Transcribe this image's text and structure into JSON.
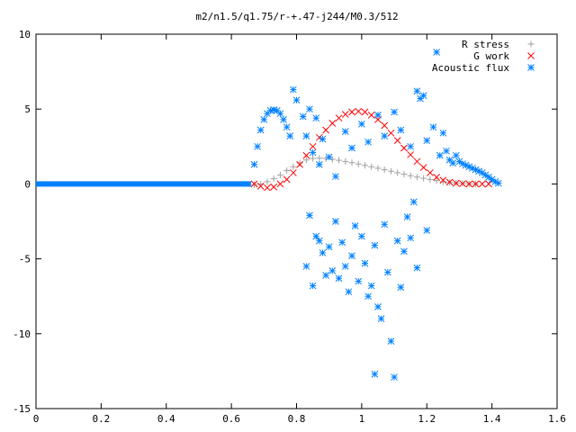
{
  "chart_data": {
    "type": "scatter",
    "title": "m2/n1.5/q1.75/r-+.47-j244/M0.3/512",
    "xlabel": "",
    "ylabel": "",
    "xlim": [
      0,
      1.6
    ],
    "ylim": [
      -15,
      10
    ],
    "x_ticks": [
      "0",
      "0.2",
      "0.4",
      "0.6",
      "0.8",
      "1",
      "1.2",
      "1.4",
      "1.6"
    ],
    "y_ticks": [
      "10",
      "5",
      "0",
      "-5",
      "-10",
      "-15"
    ],
    "grid": false,
    "legend_position": "top-right",
    "series": [
      {
        "name": "R stress",
        "marker": "plus",
        "color": "#a0a0a0",
        "points": [
          [
            0.67,
            -0.05
          ],
          [
            0.69,
            0.0
          ],
          [
            0.71,
            0.15
          ],
          [
            0.73,
            0.35
          ],
          [
            0.75,
            0.6
          ],
          [
            0.77,
            0.9
          ],
          [
            0.79,
            1.15
          ],
          [
            0.81,
            1.4
          ],
          [
            0.83,
            1.6
          ],
          [
            0.85,
            1.7
          ],
          [
            0.87,
            1.72
          ],
          [
            0.89,
            1.7
          ],
          [
            0.91,
            1.65
          ],
          [
            0.93,
            1.58
          ],
          [
            0.95,
            1.5
          ],
          [
            0.97,
            1.42
          ],
          [
            0.99,
            1.33
          ],
          [
            1.01,
            1.24
          ],
          [
            1.03,
            1.15
          ],
          [
            1.05,
            1.05
          ],
          [
            1.07,
            0.95
          ],
          [
            1.09,
            0.85
          ],
          [
            1.11,
            0.75
          ],
          [
            1.13,
            0.65
          ],
          [
            1.15,
            0.55
          ],
          [
            1.17,
            0.46
          ],
          [
            1.19,
            0.38
          ],
          [
            1.21,
            0.3
          ],
          [
            1.23,
            0.22
          ],
          [
            1.25,
            0.15
          ],
          [
            1.27,
            0.1
          ],
          [
            1.29,
            0.06
          ],
          [
            1.31,
            0.03
          ],
          [
            1.33,
            0.01
          ],
          [
            1.35,
            0.0
          ]
        ]
      },
      {
        "name": "G work",
        "marker": "cross",
        "color": "#ff0000",
        "points": [
          [
            0.67,
            0.0
          ],
          [
            0.69,
            -0.15
          ],
          [
            0.71,
            -0.25
          ],
          [
            0.73,
            -0.2
          ],
          [
            0.75,
            0.0
          ],
          [
            0.77,
            0.3
          ],
          [
            0.79,
            0.75
          ],
          [
            0.81,
            1.3
          ],
          [
            0.83,
            1.9
          ],
          [
            0.85,
            2.5
          ],
          [
            0.87,
            3.1
          ],
          [
            0.89,
            3.6
          ],
          [
            0.91,
            4.05
          ],
          [
            0.93,
            4.4
          ],
          [
            0.95,
            4.65
          ],
          [
            0.97,
            4.8
          ],
          [
            0.99,
            4.85
          ],
          [
            1.01,
            4.8
          ],
          [
            1.03,
            4.6
          ],
          [
            1.05,
            4.3
          ],
          [
            1.07,
            3.9
          ],
          [
            1.09,
            3.4
          ],
          [
            1.11,
            2.9
          ],
          [
            1.13,
            2.4
          ],
          [
            1.15,
            1.95
          ],
          [
            1.17,
            1.5
          ],
          [
            1.19,
            1.1
          ],
          [
            1.21,
            0.75
          ],
          [
            1.23,
            0.45
          ],
          [
            1.25,
            0.25
          ],
          [
            1.27,
            0.12
          ],
          [
            1.29,
            0.05
          ],
          [
            1.31,
            0.02
          ],
          [
            1.33,
            0.0
          ],
          [
            1.35,
            0.0
          ],
          [
            1.37,
            0.0
          ],
          [
            1.39,
            0.0
          ]
        ]
      },
      {
        "name": "Acoustic flux",
        "marker": "star",
        "color": "#0080ff",
        "baseline": {
          "x_start": 0.0,
          "x_end": 0.66,
          "y": 0
        },
        "points": [
          [
            0.67,
            1.3
          ],
          [
            0.68,
            2.5
          ],
          [
            0.69,
            3.6
          ],
          [
            0.7,
            4.3
          ],
          [
            0.71,
            4.7
          ],
          [
            0.72,
            4.9
          ],
          [
            0.73,
            4.95
          ],
          [
            0.74,
            4.9
          ],
          [
            0.75,
            4.7
          ],
          [
            0.76,
            4.3
          ],
          [
            0.77,
            3.8
          ],
          [
            0.78,
            3.2
          ],
          [
            0.79,
            6.3
          ],
          [
            0.8,
            5.6
          ],
          [
            0.82,
            4.5
          ],
          [
            0.83,
            3.2
          ],
          [
            0.84,
            5.0
          ],
          [
            0.85,
            2.1
          ],
          [
            0.86,
            4.4
          ],
          [
            0.87,
            1.3
          ],
          [
            0.88,
            3.0
          ],
          [
            0.84,
            -2.1
          ],
          [
            0.86,
            -3.5
          ],
          [
            0.88,
            -4.6
          ],
          [
            0.83,
            -5.5
          ],
          [
            0.85,
            -6.8
          ],
          [
            0.87,
            -3.8
          ],
          [
            0.89,
            -6.1
          ],
          [
            0.9,
            -4.2
          ],
          [
            0.91,
            -5.8
          ],
          [
            0.92,
            -2.5
          ],
          [
            0.93,
            -6.3
          ],
          [
            0.94,
            -3.9
          ],
          [
            0.95,
            -5.5
          ],
          [
            0.96,
            -7.2
          ],
          [
            0.97,
            -4.8
          ],
          [
            0.98,
            -2.8
          ],
          [
            0.99,
            -6.5
          ],
          [
            1.0,
            -3.5
          ],
          [
            1.01,
            -5.3
          ],
          [
            1.02,
            -7.5
          ],
          [
            1.03,
            -6.8
          ],
          [
            1.04,
            -4.1
          ],
          [
            1.05,
            -8.2
          ],
          [
            1.06,
            -9.0
          ],
          [
            1.07,
            -2.7
          ],
          [
            1.08,
            -5.9
          ],
          [
            1.09,
            -10.5
          ],
          [
            1.1,
            -12.9
          ],
          [
            1.04,
            -12.7
          ],
          [
            1.11,
            -3.8
          ],
          [
            1.12,
            -6.9
          ],
          [
            1.13,
            -4.5
          ],
          [
            1.14,
            -2.2
          ],
          [
            1.15,
            -3.6
          ],
          [
            1.16,
            -1.2
          ],
          [
            1.17,
            -5.6
          ],
          [
            1.2,
            -3.1
          ],
          [
            0.9,
            1.8
          ],
          [
            0.92,
            0.5
          ],
          [
            0.95,
            3.5
          ],
          [
            0.97,
            2.4
          ],
          [
            1.0,
            4.0
          ],
          [
            1.02,
            2.8
          ],
          [
            1.05,
            4.6
          ],
          [
            1.07,
            3.2
          ],
          [
            1.1,
            4.8
          ],
          [
            1.12,
            3.6
          ],
          [
            1.15,
            2.5
          ],
          [
            1.17,
            6.2
          ],
          [
            1.18,
            5.7
          ],
          [
            1.2,
            2.9
          ],
          [
            1.22,
            3.8
          ],
          [
            1.24,
            1.9
          ],
          [
            1.25,
            3.4
          ],
          [
            1.26,
            2.2
          ],
          [
            1.27,
            1.6
          ],
          [
            1.28,
            1.4
          ],
          [
            1.29,
            1.9
          ],
          [
            1.3,
            1.5
          ],
          [
            1.31,
            1.35
          ],
          [
            1.32,
            1.25
          ],
          [
            1.33,
            1.15
          ],
          [
            1.34,
            1.05
          ],
          [
            1.35,
            0.95
          ],
          [
            1.36,
            0.85
          ],
          [
            1.37,
            0.75
          ],
          [
            1.38,
            0.6
          ],
          [
            1.39,
            0.45
          ],
          [
            1.4,
            0.3
          ],
          [
            1.41,
            0.15
          ],
          [
            1.42,
            0.05
          ],
          [
            1.23,
            8.8
          ],
          [
            1.19,
            5.9
          ]
        ]
      }
    ]
  }
}
